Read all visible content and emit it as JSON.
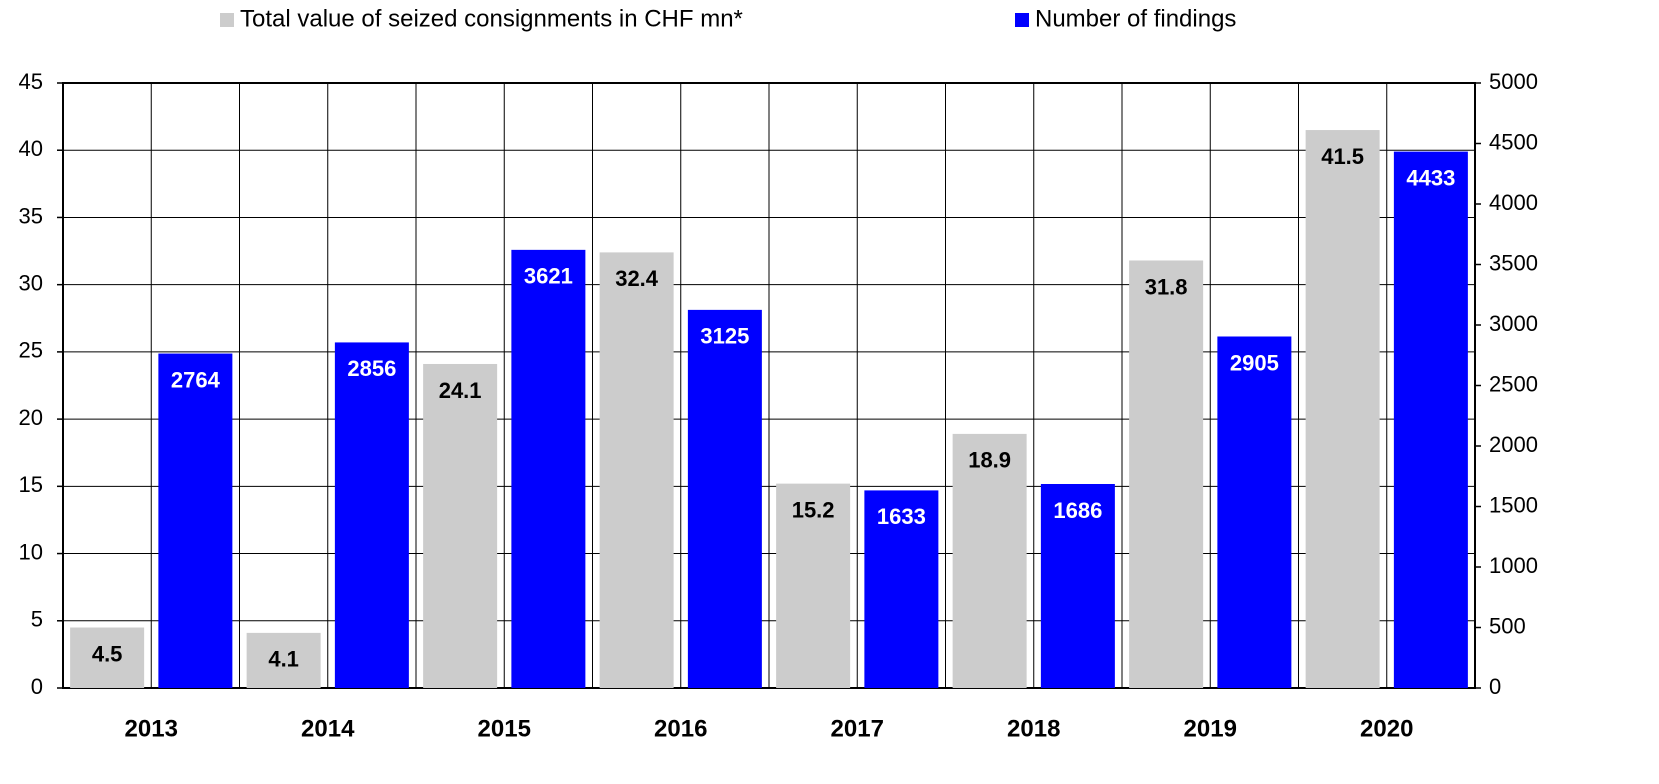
{
  "chart_data": {
    "type": "bar",
    "categories": [
      "2013",
      "2014",
      "2015",
      "2016",
      "2017",
      "2018",
      "2019",
      "2020"
    ],
    "series": [
      {
        "name": "Total value of seized consignments in CHF mn*",
        "color": "#cccccc",
        "label_color": "#000000",
        "values": [
          4.5,
          4.1,
          24.1,
          32.4,
          15.2,
          18.9,
          31.8,
          41.5
        ]
      },
      {
        "name": "Number of findings",
        "color": "#0000ff",
        "label_color": "#ffffff",
        "axis": "y2",
        "values": [
          2764,
          2856,
          3621,
          3125,
          1633,
          1686,
          2905,
          4433
        ]
      }
    ],
    "ylim": [
      0,
      45
    ],
    "yticks": [
      0,
      5,
      10,
      15,
      20,
      25,
      30,
      35,
      40,
      45
    ],
    "y2lim": [
      0,
      5000
    ],
    "y2ticks": [
      0,
      500,
      1000,
      1500,
      2000,
      2500,
      3000,
      3500,
      4000,
      4500,
      5000
    ],
    "grid": true
  }
}
